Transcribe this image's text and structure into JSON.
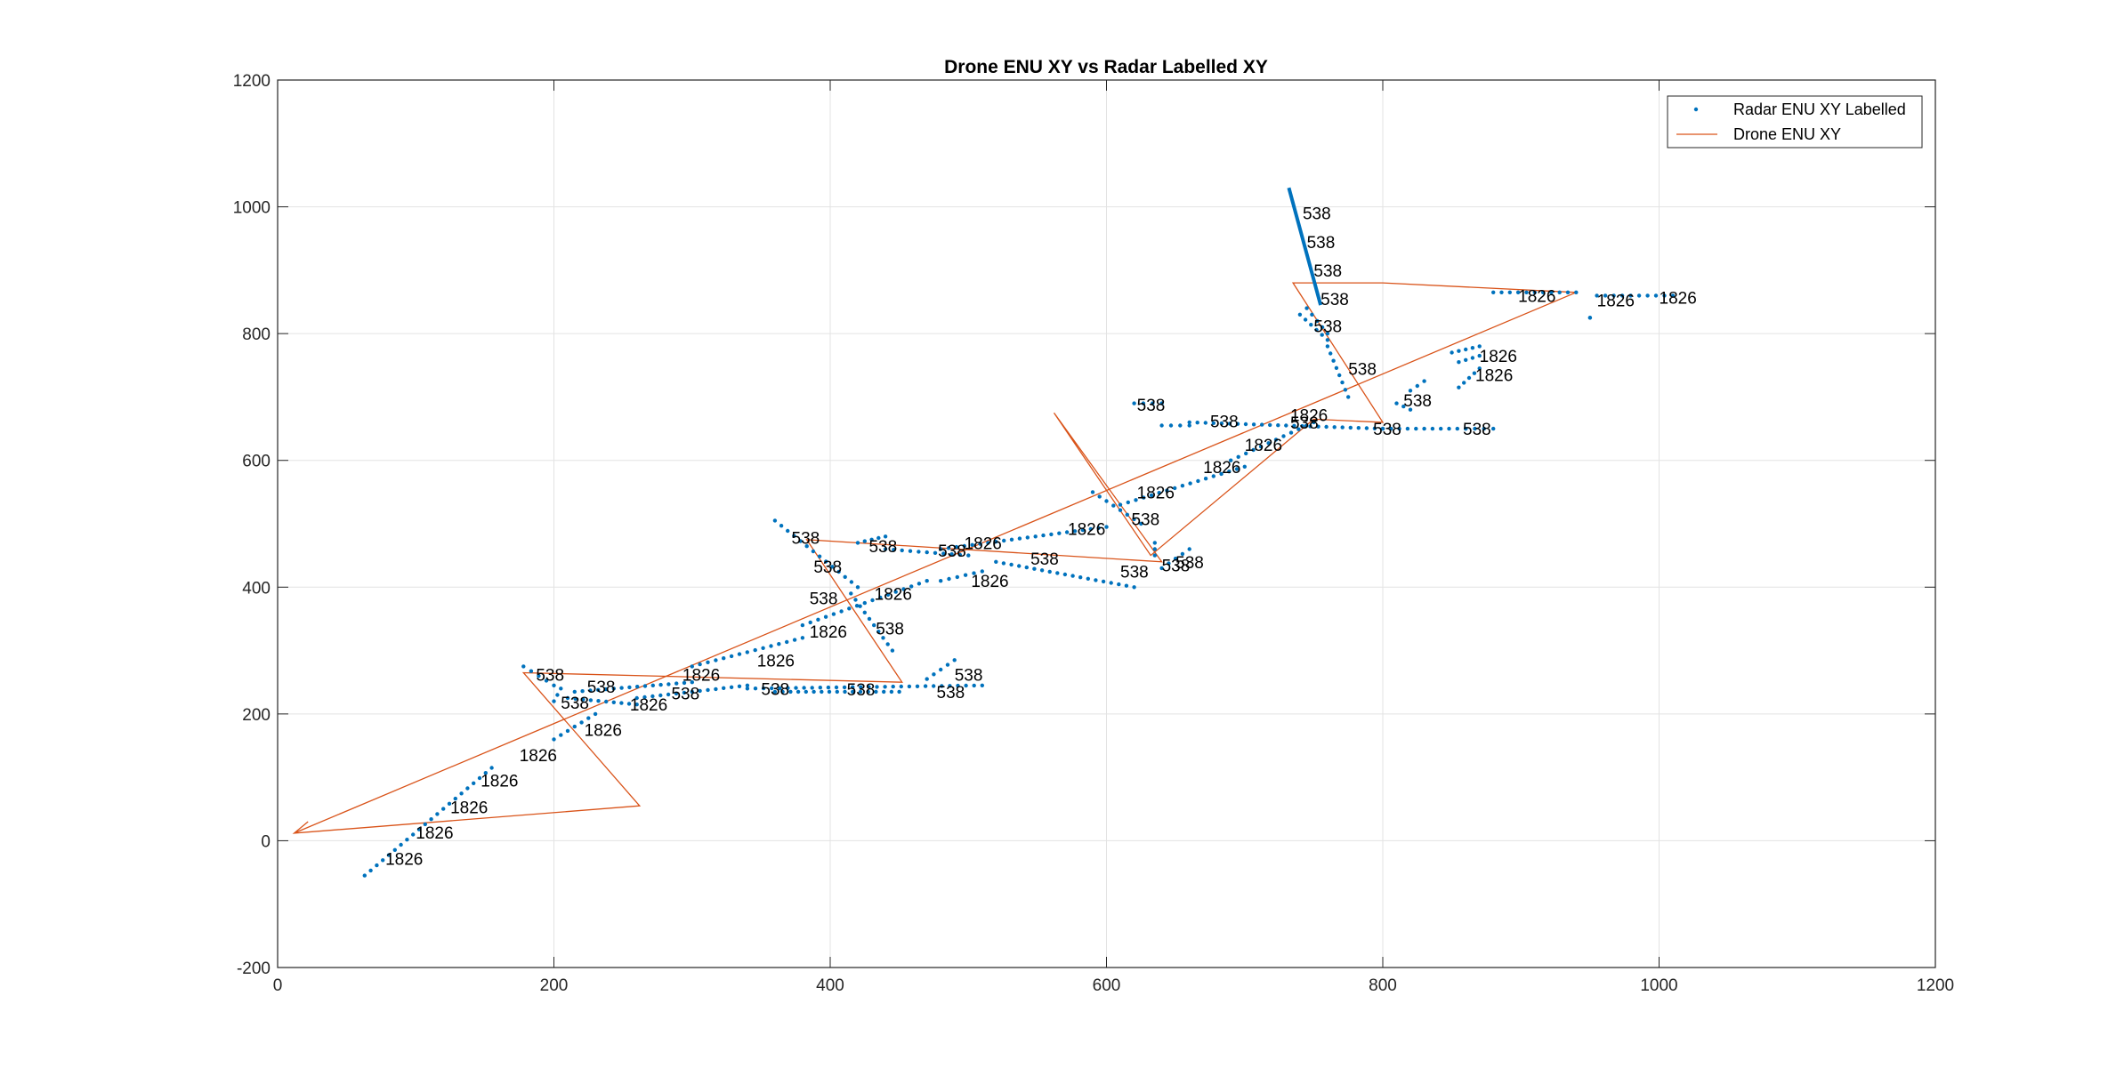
{
  "chart_data": {
    "type": "scatter",
    "title": "Drone ENU XY vs Radar Labelled XY",
    "xlabel": "",
    "ylabel": "",
    "xlim": [
      0,
      1200
    ],
    "ylim": [
      -200,
      1200
    ],
    "xticks": [
      0,
      200,
      400,
      600,
      800,
      1000,
      1200
    ],
    "yticks": [
      -200,
      0,
      200,
      400,
      600,
      800,
      1000,
      1200
    ],
    "grid": true,
    "legend_position": "top-right",
    "colors": {
      "radar": "#0072BD",
      "drone": "#D95319"
    },
    "series": [
      {
        "name": "Radar ENU XY Labelled",
        "style": "points",
        "segments": [
          [
            [
              63,
              -55
            ],
            [
              155,
              115
            ]
          ],
          [
            [
              200,
              160
            ],
            [
              230,
              200
            ]
          ],
          [
            [
              178,
              275
            ],
            [
              200,
              245
            ]
          ],
          [
            [
              205,
              240
            ],
            [
              200,
              220
            ]
          ],
          [
            [
              215,
              235
            ],
            [
              300,
              250
            ]
          ],
          [
            [
              210,
              225
            ],
            [
              260,
              215
            ]
          ],
          [
            [
              260,
              225
            ],
            [
              340,
              245
            ]
          ],
          [
            [
              300,
              275
            ],
            [
              380,
              320
            ]
          ],
          [
            [
              340,
              240
            ],
            [
              510,
              245
            ]
          ],
          [
            [
              360,
              235
            ],
            [
              450,
              235
            ]
          ],
          [
            [
              380,
              340
            ],
            [
              470,
              410
            ]
          ],
          [
            [
              360,
              505
            ],
            [
              420,
              400
            ]
          ],
          [
            [
              415,
              390
            ],
            [
              445,
              300
            ]
          ],
          [
            [
              420,
              470
            ],
            [
              440,
              480
            ]
          ],
          [
            [
              440,
              460
            ],
            [
              500,
              450
            ]
          ],
          [
            [
              480,
              410
            ],
            [
              510,
              425
            ]
          ],
          [
            [
              470,
              255
            ],
            [
              490,
              285
            ]
          ],
          [
            [
              480,
              460
            ],
            [
              600,
              495
            ]
          ],
          [
            [
              520,
              440
            ],
            [
              620,
              400
            ]
          ],
          [
            [
              590,
              550
            ],
            [
              625,
              500
            ]
          ],
          [
            [
              610,
              530
            ],
            [
              700,
              590
            ]
          ],
          [
            [
              620,
              690
            ],
            [
              640,
              690
            ]
          ],
          [
            [
              640,
              655
            ],
            [
              660,
              655
            ]
          ],
          [
            [
              635,
              470
            ],
            [
              635,
              450
            ]
          ],
          [
            [
              640,
              430
            ],
            [
              660,
              460
            ]
          ],
          [
            [
              690,
              600
            ],
            [
              750,
              660
            ]
          ],
          [
            [
              660,
              660
            ],
            [
              800,
              650
            ]
          ],
          [
            [
              745,
              840
            ],
            [
              760,
              800
            ]
          ],
          [
            [
              740,
              830
            ],
            [
              760,
              790
            ]
          ],
          [
            [
              760,
              780
            ],
            [
              775,
              700
            ]
          ],
          [
            [
              810,
              690
            ],
            [
              820,
              680
            ]
          ],
          [
            [
              820,
              710
            ],
            [
              830,
              725
            ]
          ],
          [
            [
              850,
              770
            ],
            [
              870,
              780
            ]
          ],
          [
            [
              855,
              715
            ],
            [
              870,
              745
            ]
          ],
          [
            [
              855,
              755
            ],
            [
              870,
              765
            ]
          ],
          [
            [
              860,
              650
            ],
            [
              880,
              650
            ]
          ],
          [
            [
              800,
              650
            ],
            [
              860,
              650
            ]
          ],
          [
            [
              880,
              865
            ],
            [
              940,
              865
            ]
          ],
          [
            [
              955,
              860
            ],
            [
              1010,
              860
            ]
          ],
          [
            [
              950,
              825
            ],
            [
              950,
              825
            ]
          ]
        ],
        "lines": [
          [
            [
              732,
              1030
            ],
            [
              755,
              845
            ]
          ]
        ],
        "labels": [
          {
            "x": 78,
            "y": -28,
            "text": "1826"
          },
          {
            "x": 100,
            "y": 13,
            "text": "1826"
          },
          {
            "x": 125,
            "y": 53,
            "text": "1826"
          },
          {
            "x": 147,
            "y": 95,
            "text": "1826"
          },
          {
            "x": 175,
            "y": 135,
            "text": "1826"
          },
          {
            "x": 222,
            "y": 175,
            "text": "1826"
          },
          {
            "x": 187,
            "y": 262,
            "text": "538"
          },
          {
            "x": 205,
            "y": 218,
            "text": "538"
          },
          {
            "x": 224,
            "y": 243,
            "text": "538"
          },
          {
            "x": 255,
            "y": 215,
            "text": "1826"
          },
          {
            "x": 285,
            "y": 233,
            "text": "538"
          },
          {
            "x": 293,
            "y": 262,
            "text": "1826"
          },
          {
            "x": 350,
            "y": 240,
            "text": "538"
          },
          {
            "x": 347,
            "y": 285,
            "text": "1826"
          },
          {
            "x": 385,
            "y": 330,
            "text": "1826"
          },
          {
            "x": 385,
            "y": 383,
            "text": "538"
          },
          {
            "x": 388,
            "y": 433,
            "text": "538"
          },
          {
            "x": 372,
            "y": 478,
            "text": "538"
          },
          {
            "x": 412,
            "y": 239,
            "text": "538"
          },
          {
            "x": 433,
            "y": 335,
            "text": "538"
          },
          {
            "x": 432,
            "y": 390,
            "text": "1826"
          },
          {
            "x": 428,
            "y": 465,
            "text": "538"
          },
          {
            "x": 478,
            "y": 458,
            "text": "538"
          },
          {
            "x": 502,
            "y": 410,
            "text": "1826"
          },
          {
            "x": 497,
            "y": 470,
            "text": "1826"
          },
          {
            "x": 477,
            "y": 235,
            "text": "538"
          },
          {
            "x": 490,
            "y": 262,
            "text": "538"
          },
          {
            "x": 545,
            "y": 445,
            "text": "538"
          },
          {
            "x": 572,
            "y": 492,
            "text": "1826"
          },
          {
            "x": 618,
            "y": 508,
            "text": "538"
          },
          {
            "x": 610,
            "y": 425,
            "text": "538"
          },
          {
            "x": 622,
            "y": 550,
            "text": "1826"
          },
          {
            "x": 640,
            "y": 435,
            "text": "538"
          },
          {
            "x": 650,
            "y": 440,
            "text": "538"
          },
          {
            "x": 622,
            "y": 688,
            "text": "538"
          },
          {
            "x": 675,
            "y": 662,
            "text": "538"
          },
          {
            "x": 670,
            "y": 590,
            "text": "1826"
          },
          {
            "x": 700,
            "y": 625,
            "text": "1826"
          },
          {
            "x": 733,
            "y": 660,
            "text": "538"
          },
          {
            "x": 733,
            "y": 672,
            "text": "1826"
          },
          {
            "x": 793,
            "y": 650,
            "text": "538"
          },
          {
            "x": 858,
            "y": 650,
            "text": "538"
          },
          {
            "x": 742,
            "y": 990,
            "text": "538"
          },
          {
            "x": 745,
            "y": 945,
            "text": "538"
          },
          {
            "x": 750,
            "y": 900,
            "text": "538"
          },
          {
            "x": 755,
            "y": 855,
            "text": "538"
          },
          {
            "x": 750,
            "y": 812,
            "text": "538"
          },
          {
            "x": 775,
            "y": 745,
            "text": "538"
          },
          {
            "x": 815,
            "y": 695,
            "text": "538"
          },
          {
            "x": 867,
            "y": 735,
            "text": "1826"
          },
          {
            "x": 870,
            "y": 765,
            "text": "1826"
          },
          {
            "x": 898,
            "y": 860,
            "text": "1826"
          },
          {
            "x": 955,
            "y": 853,
            "text": "1826"
          },
          {
            "x": 1000,
            "y": 857,
            "text": "1826"
          }
        ]
      },
      {
        "name": "Drone ENU XY",
        "style": "line",
        "path": [
          [
            22,
            30
          ],
          [
            12,
            12
          ],
          [
            262,
            55
          ],
          [
            178,
            265
          ],
          [
            452,
            250
          ],
          [
            383,
            475
          ],
          [
            640,
            440
          ],
          [
            562,
            675
          ],
          [
            632,
            450
          ],
          [
            750,
            665
          ],
          [
            800,
            660
          ],
          [
            735,
            880
          ],
          [
            800,
            880
          ],
          [
            940,
            865
          ],
          [
            12,
            12
          ]
        ]
      }
    ]
  }
}
